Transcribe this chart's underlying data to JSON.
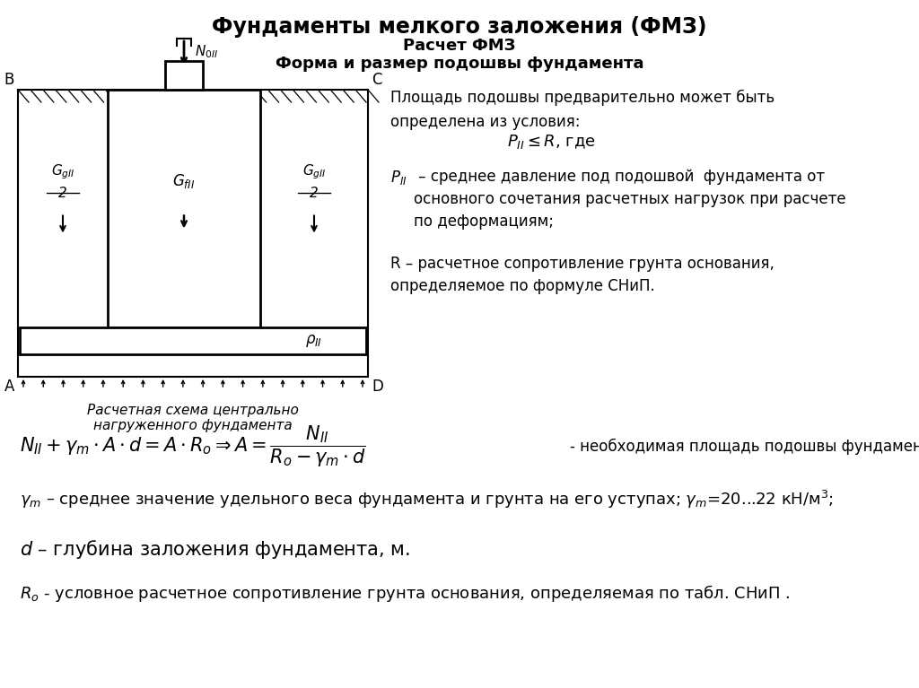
{
  "title_line1": "Фундаменты мелкого заложения (ФМЗ)",
  "title_line2": "Расчет ФМЗ",
  "title_line3": "Форма и размер подошвы фундамента",
  "bg_color": "#ffffff",
  "text_color": "#000000",
  "diagram_caption": "Расчетная схема центрально\nнагруженного фундамента",
  "right_text1": "Площадь подошвы предварительно может быть\nопределена из условия:",
  "right_formula1": "$P_{II} \\leq R$, где",
  "right_text2_a": "$P_{II}$",
  "right_text2_b": " – среднее давление под подошвой  фундамента от\nосновного сочетания расчетных нагрузок при расчете\nпо деформациям;",
  "right_text3": "R – расчетное сопротивление грунта основания,\nопределяемое по формуле СНиП.",
  "formula_main": "$N_{II} + \\gamma_m \\cdot A \\cdot d = A \\cdot R_o \\Rightarrow A = \\dfrac{N_{II}}{R_o - \\gamma_m \\cdot d}$",
  "formula_suffix": "- необходимая площадь подошвы фундамента.",
  "bottom_text1": "$\\gamma_m$ – среднее значение удельного веса фундамента и грунта на его уступах; $\\gamma_m$=20...22 кН/м$^3$;",
  "bottom_text2": "$d$ – глубина заложения фундамента, м.",
  "bottom_text3": "$R_o$ - условное расчетное сопротивление грунта основания, определяемая по табл. СНиП ."
}
